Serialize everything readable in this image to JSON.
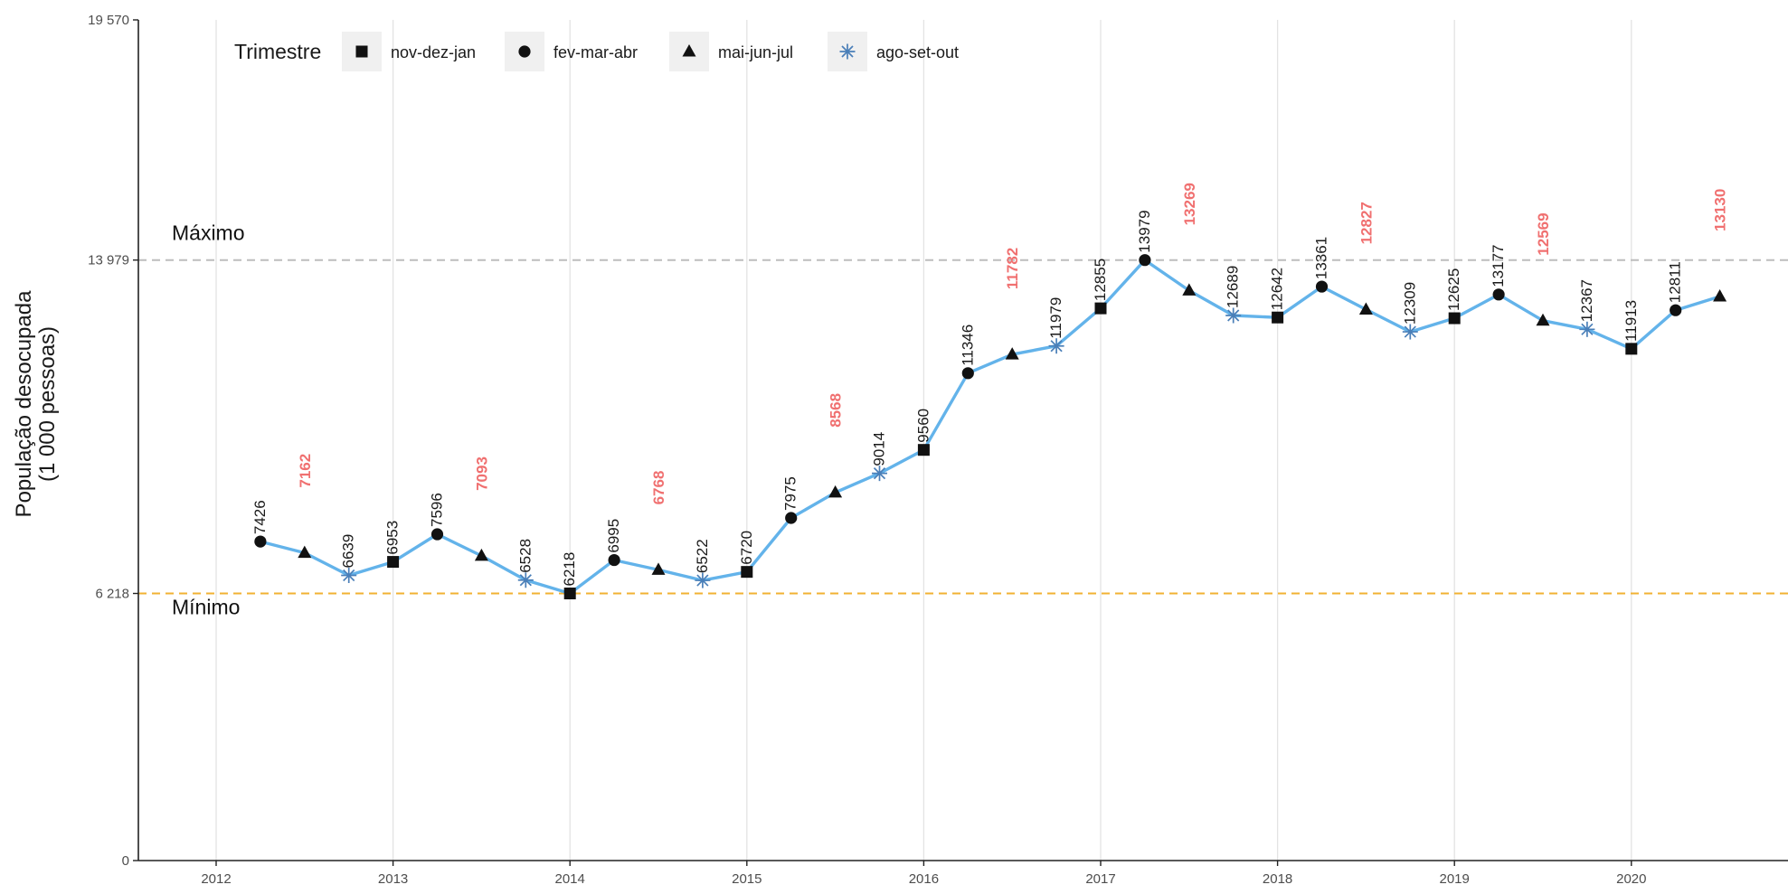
{
  "chart_data": {
    "type": "line",
    "title": "",
    "xlabel": "",
    "ylabel_lines": [
      "População desocupada",
      "(1 000 pessoas)"
    ],
    "ylim": [
      0,
      19570
    ],
    "xlim": [
      2011.6,
      2020.9
    ],
    "y_ticks": [
      {
        "value": 0,
        "label": "0"
      },
      {
        "value": 6218,
        "label": "6 218"
      },
      {
        "value": 13979,
        "label": "13 979"
      },
      {
        "value": 19570,
        "label": "19 570"
      }
    ],
    "x_ticks": [
      {
        "value": 2012,
        "label": "2012"
      },
      {
        "value": 2013,
        "label": "2013"
      },
      {
        "value": 2014,
        "label": "2014"
      },
      {
        "value": 2015,
        "label": "2015"
      },
      {
        "value": 2016,
        "label": "2016"
      },
      {
        "value": 2017,
        "label": "2017"
      },
      {
        "value": 2018,
        "label": "2018"
      },
      {
        "value": 2019,
        "label": "2019"
      },
      {
        "value": 2020,
        "label": "2020"
      }
    ],
    "grid": "vertical",
    "line_color": "#63b3ea",
    "reference_lines": [
      {
        "name": "Máximo",
        "value": 13979,
        "color": "#bdbdbd",
        "style": "dashed"
      },
      {
        "name": "Mínimo",
        "value": 6218,
        "color": "#f2b233",
        "style": "dashed"
      }
    ],
    "legend": {
      "title": "Trimestre",
      "position": "top-left",
      "entries": [
        {
          "label": "nov-dez-jan",
          "shape": "square"
        },
        {
          "label": "fev-mar-abr",
          "shape": "circle"
        },
        {
          "label": "mai-jun-jul",
          "shape": "triangle"
        },
        {
          "label": "ago-set-out",
          "shape": "asterisk"
        }
      ]
    },
    "highlight_label_color": "#f07070",
    "points": [
      {
        "x": 2012.25,
        "y": 7426,
        "shape": "circle",
        "label": "7426",
        "label_highlight": false
      },
      {
        "x": 2012.5,
        "y": 7162,
        "shape": "triangle",
        "label": "7162",
        "label_highlight": true
      },
      {
        "x": 2012.75,
        "y": 6639,
        "shape": "asterisk",
        "label": "6639",
        "label_highlight": false
      },
      {
        "x": 2013.0,
        "y": 6953,
        "shape": "square",
        "label": "6953",
        "label_highlight": false
      },
      {
        "x": 2013.25,
        "y": 7596,
        "shape": "circle",
        "label": "7596",
        "label_highlight": false
      },
      {
        "x": 2013.5,
        "y": 7093,
        "shape": "triangle",
        "label": "7093",
        "label_highlight": true
      },
      {
        "x": 2013.75,
        "y": 6528,
        "shape": "asterisk",
        "label": "6528",
        "label_highlight": false
      },
      {
        "x": 2014.0,
        "y": 6218,
        "shape": "square",
        "label": "6218",
        "label_highlight": false
      },
      {
        "x": 2014.25,
        "y": 6995,
        "shape": "circle",
        "label": "6995",
        "label_highlight": false
      },
      {
        "x": 2014.5,
        "y": 6768,
        "shape": "triangle",
        "label": "6768",
        "label_highlight": true
      },
      {
        "x": 2014.75,
        "y": 6522,
        "shape": "asterisk",
        "label": "6522",
        "label_highlight": false
      },
      {
        "x": 2015.0,
        "y": 6720,
        "shape": "square",
        "label": "6720",
        "label_highlight": false
      },
      {
        "x": 2015.25,
        "y": 7975,
        "shape": "circle",
        "label": "7975",
        "label_highlight": false
      },
      {
        "x": 2015.5,
        "y": 8568,
        "shape": "triangle",
        "label": "8568",
        "label_highlight": true
      },
      {
        "x": 2015.75,
        "y": 9014,
        "shape": "asterisk",
        "label": "9014",
        "label_highlight": false
      },
      {
        "x": 2016.0,
        "y": 9560,
        "shape": "square",
        "label": "9560",
        "label_highlight": false
      },
      {
        "x": 2016.25,
        "y": 11346,
        "shape": "circle",
        "label": "11346",
        "label_highlight": false
      },
      {
        "x": 2016.5,
        "y": 11782,
        "shape": "triangle",
        "label": "11782",
        "label_highlight": true
      },
      {
        "x": 2016.75,
        "y": 11979,
        "shape": "asterisk",
        "label": "11979",
        "label_highlight": false
      },
      {
        "x": 2017.0,
        "y": 12855,
        "shape": "square",
        "label": "12855",
        "label_highlight": false
      },
      {
        "x": 2017.25,
        "y": 13979,
        "shape": "circle",
        "label": "13979",
        "label_highlight": false
      },
      {
        "x": 2017.5,
        "y": 13269,
        "shape": "triangle",
        "label": "13269",
        "label_highlight": true
      },
      {
        "x": 2017.75,
        "y": 12689,
        "shape": "asterisk",
        "label": "12689",
        "label_highlight": false
      },
      {
        "x": 2018.0,
        "y": 12642,
        "shape": "square",
        "label": "12642",
        "label_highlight": false
      },
      {
        "x": 2018.25,
        "y": 13361,
        "shape": "circle",
        "label": "13361",
        "label_highlight": false
      },
      {
        "x": 2018.5,
        "y": 12827,
        "shape": "triangle",
        "label": "12827",
        "label_highlight": true
      },
      {
        "x": 2018.75,
        "y": 12309,
        "shape": "asterisk",
        "label": "12309",
        "label_highlight": false
      },
      {
        "x": 2019.0,
        "y": 12625,
        "shape": "square",
        "label": "12625",
        "label_highlight": false
      },
      {
        "x": 2019.25,
        "y": 13177,
        "shape": "circle",
        "label": "13177",
        "label_highlight": false
      },
      {
        "x": 2019.5,
        "y": 12569,
        "shape": "triangle",
        "label": "12569",
        "label_highlight": true
      },
      {
        "x": 2019.75,
        "y": 12367,
        "shape": "asterisk",
        "label": "12367",
        "label_highlight": false
      },
      {
        "x": 2020.0,
        "y": 11913,
        "shape": "square",
        "label": "11913",
        "label_highlight": false
      },
      {
        "x": 2020.25,
        "y": 12811,
        "shape": "circle",
        "label": "12811",
        "label_highlight": false
      },
      {
        "x": 2020.5,
        "y": 13130,
        "shape": "triangle",
        "label": "13130",
        "label_highlight": true
      }
    ]
  }
}
